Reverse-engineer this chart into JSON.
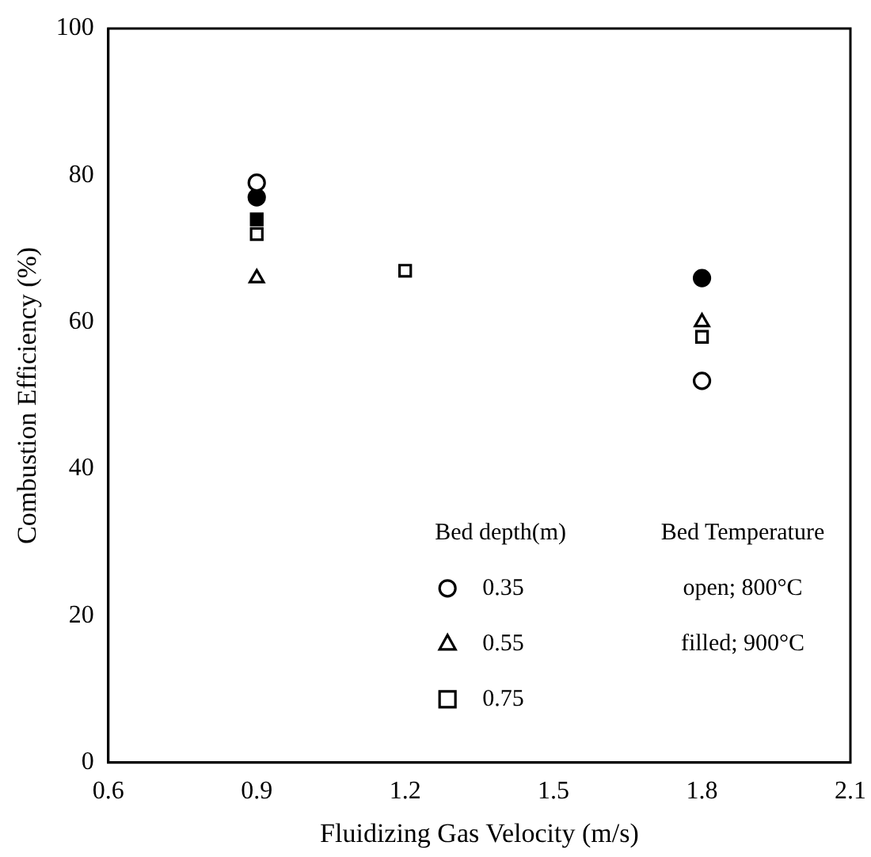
{
  "chart_data": {
    "type": "scatter",
    "xlabel": "Fluidizing Gas Velocity (m/s)",
    "ylabel": "Combustion Efficiency (%)",
    "xlim": [
      0.6,
      2.1
    ],
    "xticks": [
      0.6,
      0.9,
      1.2,
      1.5,
      1.8,
      2.1
    ],
    "ylim": [
      0,
      100
    ],
    "yticks": [
      0,
      20,
      40,
      60,
      80,
      100
    ],
    "grid": false,
    "legend": "bottom right",
    "legend_title": "Bed depth(m)",
    "annotations": [
      "Bed Temperature",
      "open; 800°C",
      "filled; 900°C"
    ],
    "series": [
      {
        "name": "0.35",
        "color": "#ffffff",
        "marker": "circle",
        "x": [
          0.9,
          1.8
        ],
        "values": [
          79,
          52
        ]
      },
      {
        "name": "0.55",
        "color": "#ffffff",
        "marker": "triangle",
        "x": [
          0.9,
          1.8
        ],
        "values": [
          66,
          60
        ]
      },
      {
        "name": "0.75",
        "color": "#ffffff",
        "marker": "square",
        "x": [
          0.9,
          1.2,
          1.8
        ],
        "values": [
          72,
          67,
          58
        ]
      },
      {
        "color": "#000000",
        "marker": "circle",
        "x": [
          0.9,
          1.8
        ],
        "values": [
          77,
          66
        ]
      },
      {
        "color": "#000000",
        "marker": "square",
        "x": [
          0.9
        ],
        "values": [
          74
        ]
      }
    ]
  }
}
